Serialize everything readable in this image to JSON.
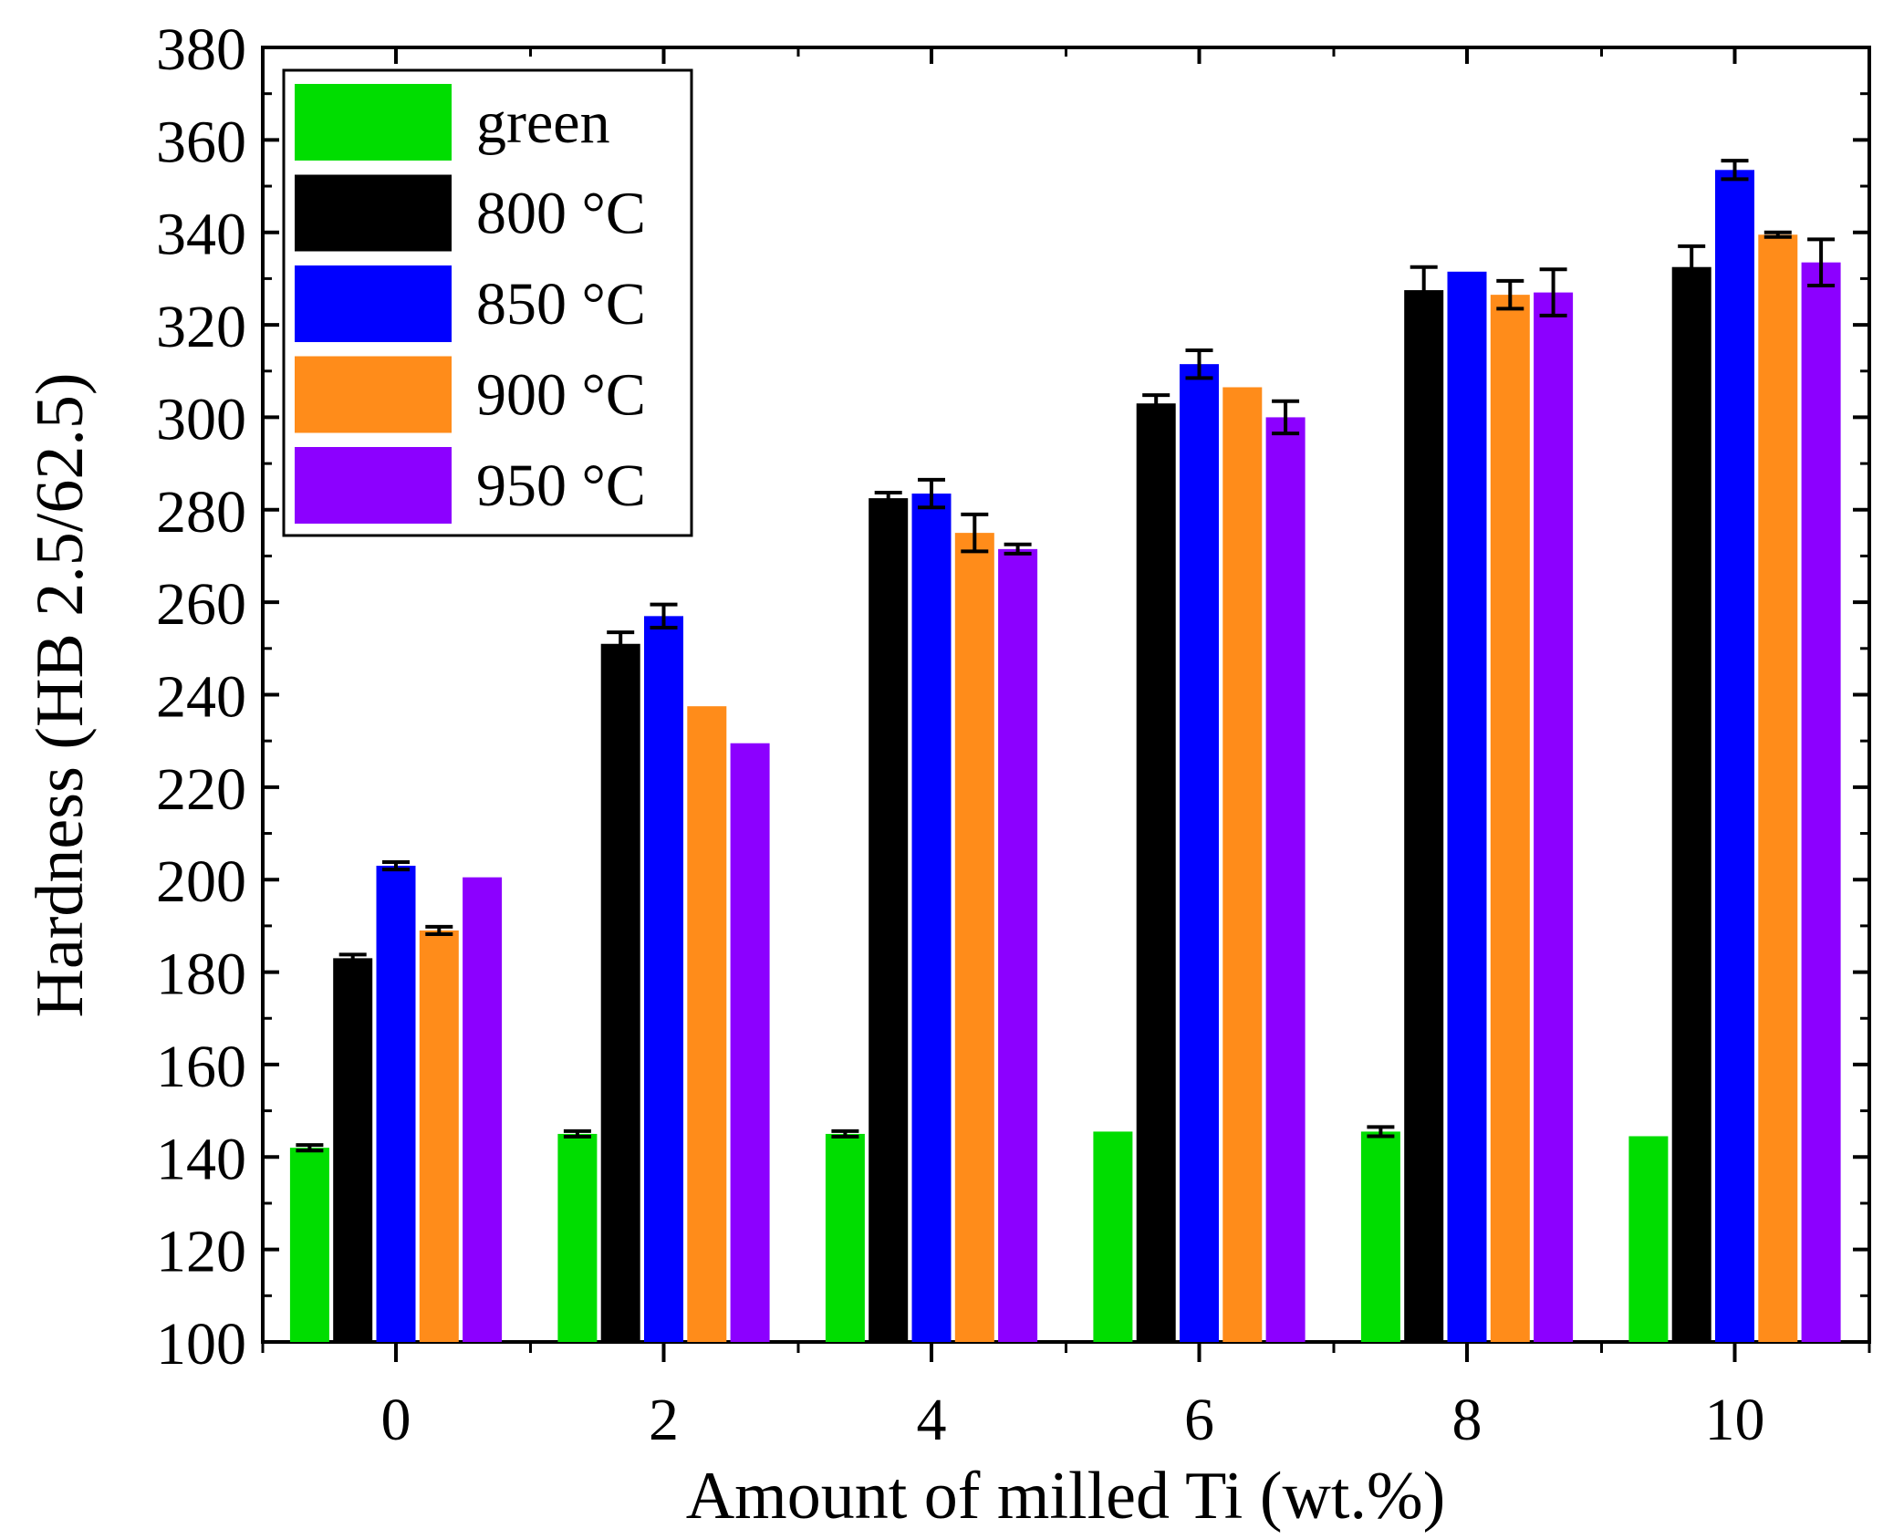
{
  "chart_data": {
    "type": "bar",
    "title": "",
    "xlabel": "Amount of milled Ti (wt.%)",
    "ylabel": "Hardness (HB 2.5/62.5)",
    "ylim": [
      100,
      380
    ],
    "yticks": [
      "100",
      "120",
      "140",
      "160",
      "180",
      "200",
      "220",
      "240",
      "260",
      "280",
      "300",
      "320",
      "340",
      "360",
      "380"
    ],
    "categories": [
      "0",
      "2",
      "4",
      "6",
      "8",
      "10"
    ],
    "legend_position": "top-left",
    "grid": false,
    "series": [
      {
        "name": "green",
        "color": "#00dd00",
        "values": [
          142,
          145,
          145,
          145.5,
          145.5,
          144.5
        ],
        "errors": [
          0.6,
          0.6,
          0.6,
          0,
          1.0,
          0
        ]
      },
      {
        "name": "800 °C",
        "color": "#000000",
        "values": [
          183,
          251,
          282.5,
          303,
          327.5,
          332.5
        ],
        "errors": [
          0.8,
          2.5,
          1.2,
          1.8,
          5.0,
          4.5
        ]
      },
      {
        "name": "850 °C",
        "color": "#0000ff",
        "values": [
          203,
          257,
          283.5,
          311.5,
          331.5,
          353.5
        ],
        "errors": [
          0.8,
          2.5,
          3.0,
          3.0,
          0,
          2.0
        ]
      },
      {
        "name": "900 °C",
        "color": "#ff8c1a",
        "values": [
          189,
          237.5,
          275,
          306.5,
          326.5,
          339.5
        ],
        "errors": [
          0.8,
          0,
          4.0,
          0,
          3.0,
          0.5
        ]
      },
      {
        "name": "950 °C",
        "color": "#8c00ff",
        "values": [
          200.5,
          229.5,
          271.5,
          300,
          327,
          333.5
        ],
        "errors": [
          0,
          0,
          1.0,
          3.5,
          5.0,
          5.0
        ]
      }
    ]
  }
}
